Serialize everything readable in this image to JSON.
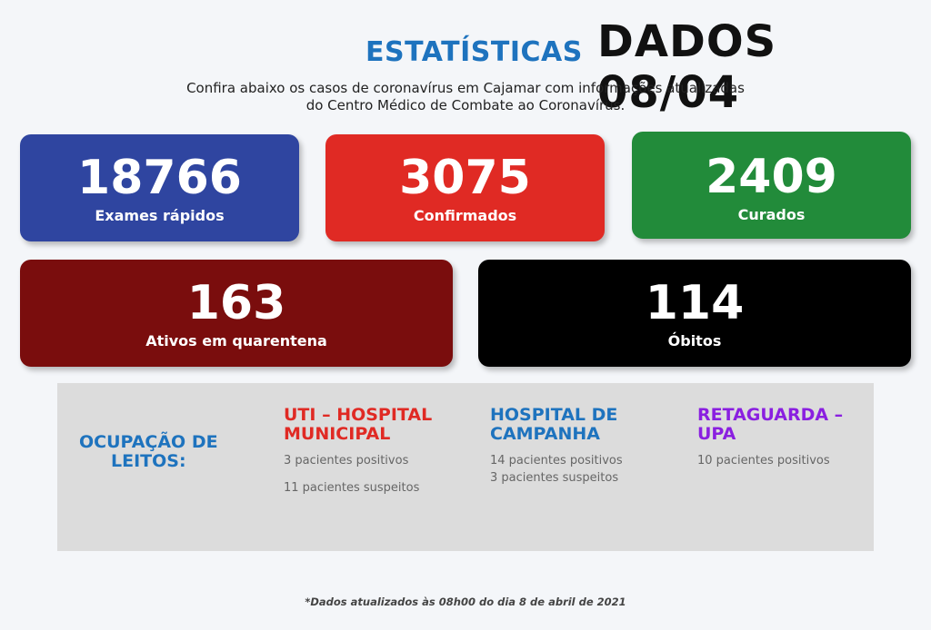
{
  "header": {
    "title": "ESTATÍSTICAS",
    "date": "DADOS 08/04",
    "subtitle_line1": "Confira abaixo os casos de coronavírus em Cajamar com informações atualizadas",
    "subtitle_line2": "do Centro Médico de Combate ao Coronavírus."
  },
  "stats": {
    "exames": {
      "value": "18766",
      "label": "Exames rápidos",
      "color": "#2f45a0"
    },
    "confirmados": {
      "value": "3075",
      "label": "Confirmados",
      "color": "#e02a24"
    },
    "curados": {
      "value": "2409",
      "label": "Curados",
      "color": "#228b3a"
    },
    "ativos": {
      "value": "163",
      "label": "Ativos em quarentena",
      "color": "#7a0d0d"
    },
    "obitos": {
      "value": "114",
      "label": "Óbitos",
      "color": "#000000"
    }
  },
  "leitos": {
    "title_line1": "OCUPAÇÃO DE",
    "title_line2": "LEITOS:",
    "uti": {
      "head_line1": "UTI – HOSPITAL",
      "head_line2": "MUNICIPAL",
      "line1": "3 pacientes positivos",
      "line2": "11 pacientes suspeitos"
    },
    "campanha": {
      "head_line1": "HOSPITAL DE",
      "head_line2": "CAMPANHA",
      "line1": "14 pacientes positivos",
      "line2": "3 pacientes suspeitos"
    },
    "retaguarda": {
      "head_line1": "RETAGUARDA –",
      "head_line2": "UPA",
      "line1": "10 pacientes positivos"
    }
  },
  "footer": "*Dados atualizados às 08h00 do dia 8 de abril de 2021"
}
